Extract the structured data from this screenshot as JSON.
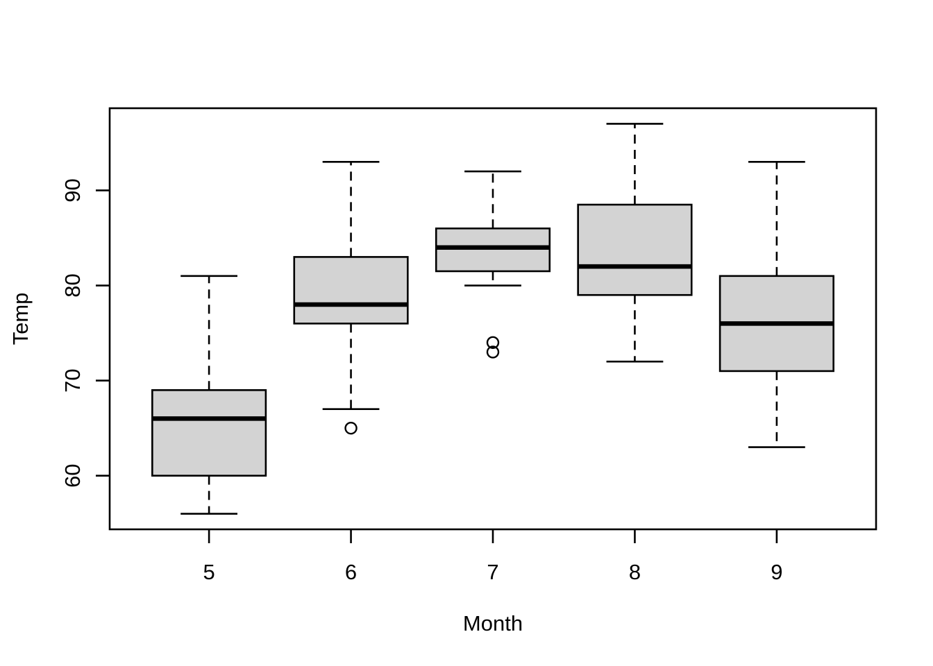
{
  "figure": {
    "background": "#ffffff"
  },
  "chart_data": {
    "type": "boxplot",
    "title": "",
    "xlabel": "Month",
    "ylabel": "Temp",
    "categories": [
      "5",
      "6",
      "7",
      "8",
      "9"
    ],
    "y_ticks": [
      60,
      70,
      80,
      90
    ],
    "ylim": [
      54.36,
      98.64
    ],
    "grid": false,
    "legend": false,
    "whisker_linestyle": "dashed",
    "orientation": "vertical",
    "series": [
      {
        "group": "5",
        "lower_whisker": 56,
        "q1": 60,
        "median": 66,
        "q3": 69,
        "upper_whisker": 81,
        "outliers": []
      },
      {
        "group": "6",
        "lower_whisker": 67,
        "q1": 76,
        "median": 78,
        "q3": 83,
        "upper_whisker": 93,
        "outliers": [
          65
        ]
      },
      {
        "group": "7",
        "lower_whisker": 80,
        "q1": 81.5,
        "median": 84,
        "q3": 86,
        "upper_whisker": 92,
        "outliers": [
          73,
          74
        ]
      },
      {
        "group": "8",
        "lower_whisker": 72,
        "q1": 79,
        "median": 82,
        "q3": 88.5,
        "upper_whisker": 97,
        "outliers": []
      },
      {
        "group": "9",
        "lower_whisker": 63,
        "q1": 71,
        "median": 76,
        "q3": 81,
        "upper_whisker": 93,
        "outliers": []
      }
    ],
    "colors": {
      "box_fill": "#d3d3d3",
      "stroke": "#000000",
      "background": "#ffffff"
    }
  }
}
